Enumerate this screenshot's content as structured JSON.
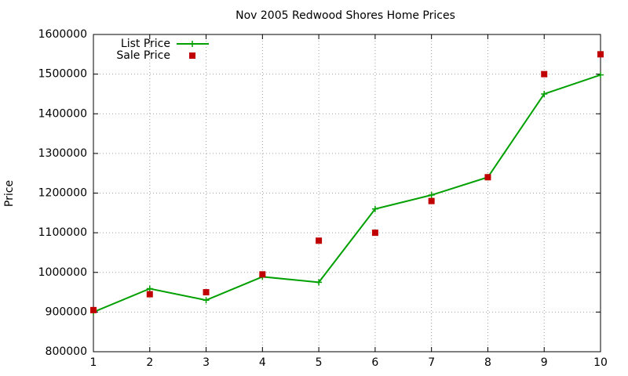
{
  "chart_data": {
    "type": "line",
    "title": "Nov 2005 Redwood Shores Home Prices",
    "y_label": "Price",
    "x": [
      1,
      2,
      3,
      4,
      5,
      6,
      7,
      8,
      9,
      10
    ],
    "series": [
      {
        "name": "List Price",
        "color": "#00a000",
        "style": "linespoints",
        "values": [
          900000,
          959000,
          930000,
          989000,
          975000,
          1160000,
          1195000,
          1240000,
          1450000,
          1498000
        ]
      },
      {
        "name": "Sale Price",
        "color": "#c00000",
        "style": "points",
        "values": [
          905000,
          945000,
          950000,
          995000,
          1080000,
          1100000,
          1180000,
          1240000,
          1500000,
          1550000
        ]
      }
    ],
    "xlim": [
      1,
      10
    ],
    "xticks": [
      1,
      2,
      3,
      4,
      5,
      6,
      7,
      8,
      9,
      10
    ],
    "ylim": [
      800000,
      1600000
    ],
    "yticks": [
      800000,
      900000,
      1000000,
      1100000,
      1200000,
      1300000,
      1400000,
      1500000,
      1600000
    ],
    "grid": true,
    "legend": "top-left"
  }
}
